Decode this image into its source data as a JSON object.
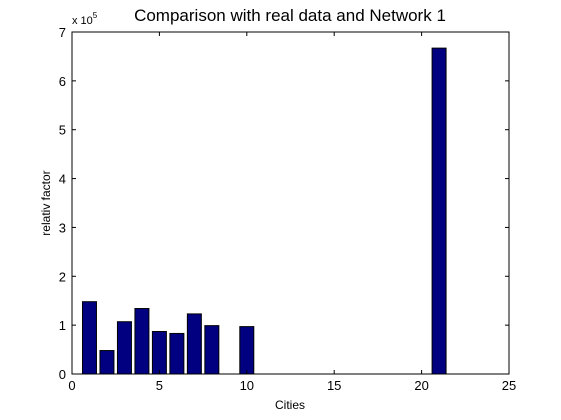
{
  "chart_data": {
    "type": "bar",
    "title": "Comparison with real data and Network 1",
    "xlabel": "Cities",
    "ylabel": "relativ factor",
    "y_multiplier_base": "x 10",
    "y_multiplier_exp": "5",
    "x": [
      1,
      2,
      3,
      4,
      5,
      6,
      7,
      8,
      10,
      21
    ],
    "values": [
      1.48,
      0.48,
      1.07,
      1.34,
      0.87,
      0.83,
      1.23,
      0.99,
      0.97,
      6.67
    ],
    "xlim": [
      0,
      25
    ],
    "ylim": [
      0,
      7
    ],
    "xticks": [
      0,
      5,
      10,
      15,
      20,
      25
    ],
    "yticks": [
      0,
      1,
      2,
      3,
      4,
      5,
      6,
      7
    ],
    "xtick_labels": [
      "0",
      "5",
      "10",
      "15",
      "20",
      "25"
    ],
    "ytick_labels": [
      "0",
      "1",
      "2",
      "3",
      "4",
      "5",
      "6",
      "7"
    ],
    "bar_width": 0.8,
    "bar_color": "#000080",
    "bar_edge_color": "#000000",
    "grid": false,
    "legend": "none"
  }
}
